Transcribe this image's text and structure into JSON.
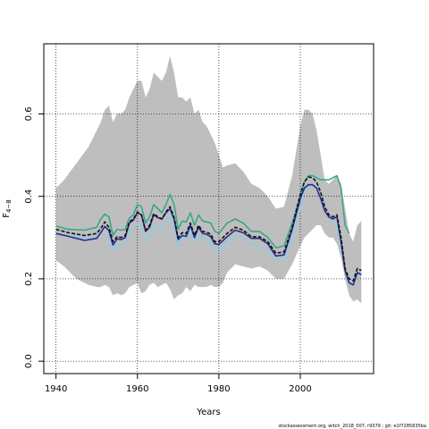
{
  "chart_data": {
    "type": "line",
    "xlabel": "Years",
    "ylabel": "F",
    "ylabel_sub": "4−8",
    "xlim": [
      1937,
      2018
    ],
    "ylim": [
      -0.03,
      0.77
    ],
    "x_ticks": [
      1940,
      1960,
      1980,
      2000
    ],
    "y_ticks": [
      0.0,
      0.2,
      0.4,
      0.6
    ],
    "x_tick_labels": [
      "1940",
      "1960",
      "1980",
      "2000"
    ],
    "y_tick_labels": [
      "0.0",
      "0.2",
      "0.4",
      "0.6"
    ],
    "grid": "dotted, at ticks",
    "footer": "stockassessment.org, witch_2018_007, r9379 ; git: e1f7285635ba",
    "band": {
      "color": "#bebebe",
      "x": [
        1940,
        1942,
        1945,
        1948,
        1950,
        1951,
        1952,
        1953,
        1954,
        1955,
        1956,
        1957,
        1958,
        1959,
        1960,
        1961,
        1962,
        1963,
        1964,
        1965,
        1966,
        1967,
        1968,
        1969,
        1970,
        1971,
        1972,
        1973,
        1974,
        1975,
        1976,
        1977,
        1978,
        1979,
        1980,
        1981,
        1982,
        1984,
        1986,
        1988,
        1990,
        1992,
        1994,
        1996,
        1998,
        2000,
        2001,
        2002,
        2003,
        2004,
        2005,
        2006,
        2007,
        2008,
        2009,
        2010,
        2011,
        2012,
        2013,
        2014,
        2015
      ],
      "upper": [
        0.42,
        0.44,
        0.48,
        0.52,
        0.56,
        0.58,
        0.61,
        0.62,
        0.58,
        0.6,
        0.6,
        0.61,
        0.64,
        0.66,
        0.68,
        0.68,
        0.64,
        0.66,
        0.7,
        0.69,
        0.68,
        0.7,
        0.74,
        0.7,
        0.64,
        0.64,
        0.63,
        0.64,
        0.6,
        0.61,
        0.58,
        0.57,
        0.55,
        0.53,
        0.5,
        0.47,
        0.475,
        0.48,
        0.46,
        0.43,
        0.42,
        0.4,
        0.37,
        0.375,
        0.45,
        0.57,
        0.61,
        0.61,
        0.6,
        0.56,
        0.5,
        0.44,
        0.43,
        0.44,
        0.45,
        0.43,
        0.37,
        0.31,
        0.29,
        0.33,
        0.34
      ],
      "lower": [
        0.245,
        0.23,
        0.2,
        0.185,
        0.18,
        0.18,
        0.185,
        0.18,
        0.16,
        0.165,
        0.16,
        0.165,
        0.18,
        0.185,
        0.19,
        0.165,
        0.17,
        0.185,
        0.19,
        0.18,
        0.185,
        0.19,
        0.175,
        0.15,
        0.16,
        0.165,
        0.18,
        0.17,
        0.185,
        0.18,
        0.18,
        0.18,
        0.185,
        0.18,
        0.18,
        0.19,
        0.215,
        0.235,
        0.23,
        0.225,
        0.23,
        0.22,
        0.2,
        0.2,
        0.235,
        0.28,
        0.3,
        0.31,
        0.32,
        0.33,
        0.33,
        0.31,
        0.3,
        0.3,
        0.285,
        0.25,
        0.2,
        0.16,
        0.145,
        0.15,
        0.14
      ]
    },
    "series": [
      {
        "color": "#3aa68c",
        "width": 1.6,
        "dash": "",
        "x": [
          1940,
          1943,
          1947,
          1950,
          1951,
          1952,
          1953,
          1954,
          1955,
          1956,
          1957,
          1958,
          1959,
          1960,
          1961,
          1962,
          1963,
          1964,
          1965,
          1966,
          1967,
          1968,
          1969,
          1970,
          1971,
          1972,
          1973,
          1974,
          1975,
          1976,
          1977,
          1978,
          1979,
          1980,
          1982,
          1984,
          1986,
          1988,
          1990,
          1992,
          1994,
          1996,
          1998,
          2000,
          2001,
          2002,
          2003,
          2004,
          2005,
          2006,
          2007,
          2008,
          2009,
          2010,
          2011,
          2012
        ],
        "values": [
          0.328,
          0.32,
          0.318,
          0.325,
          0.345,
          0.357,
          0.35,
          0.305,
          0.32,
          0.318,
          0.32,
          0.347,
          0.355,
          0.38,
          0.375,
          0.335,
          0.35,
          0.38,
          0.37,
          0.36,
          0.38,
          0.405,
          0.38,
          0.32,
          0.34,
          0.338,
          0.36,
          0.33,
          0.355,
          0.34,
          0.338,
          0.335,
          0.315,
          0.31,
          0.335,
          0.345,
          0.335,
          0.315,
          0.315,
          0.3,
          0.275,
          0.28,
          0.335,
          0.4,
          0.435,
          0.45,
          0.45,
          0.445,
          0.44,
          0.44,
          0.44,
          0.445,
          0.45,
          0.42,
          0.33,
          0.31
        ]
      },
      {
        "color": "#87ceeb",
        "width": 1.4,
        "dash": "",
        "x": [
          1940,
          1943,
          1947,
          1950,
          1951,
          1952,
          1953,
          1954,
          1955,
          1956,
          1957,
          1958,
          1959,
          1960,
          1961,
          1962,
          1963,
          1964,
          1965,
          1966,
          1967,
          1968,
          1969,
          1970,
          1971,
          1972,
          1973,
          1974,
          1975,
          1976,
          1977,
          1978,
          1979,
          1980,
          1982,
          1984,
          1986,
          1988,
          1990,
          1992,
          1994,
          1996,
          1998,
          2000,
          2001,
          2002,
          2003,
          2004,
          2005,
          2006,
          2007,
          2008,
          2009,
          2010,
          2011,
          2012,
          2013,
          2014,
          2015
        ],
        "values": [
          0.31,
          0.305,
          0.3,
          0.305,
          0.315,
          0.325,
          0.31,
          0.27,
          0.285,
          0.28,
          0.285,
          0.315,
          0.32,
          0.335,
          0.33,
          0.29,
          0.3,
          0.33,
          0.32,
          0.32,
          0.34,
          0.355,
          0.33,
          0.28,
          0.3,
          0.295,
          0.32,
          0.29,
          0.31,
          0.3,
          0.295,
          0.29,
          0.27,
          0.265,
          0.29,
          0.305,
          0.3,
          0.285,
          0.28,
          0.27,
          0.245,
          0.25,
          0.3,
          0.37,
          0.41,
          0.425,
          0.43,
          0.425,
          0.41,
          0.37,
          0.35,
          0.34,
          0.33,
          0.28,
          0.22,
          0.2,
          0.2,
          0.21,
          0.215
        ]
      },
      {
        "color": "#2a2a8a",
        "width": 1.6,
        "dash": "",
        "x": [
          1940,
          1943,
          1947,
          1950,
          1951,
          1952,
          1953,
          1954,
          1955,
          1956,
          1957,
          1958,
          1959,
          1960,
          1961,
          1962,
          1963,
          1964,
          1965,
          1966,
          1967,
          1968,
          1969,
          1970,
          1971,
          1972,
          1973,
          1974,
          1975,
          1976,
          1977,
          1978,
          1979,
          1980,
          1982,
          1984,
          1986,
          1988,
          1990,
          1992,
          1994,
          1996,
          1998,
          2000,
          2001,
          2002,
          2003,
          2004,
          2005,
          2006,
          2007,
          2008,
          2009,
          2010,
          2011,
          2012,
          2013,
          2014,
          2015
        ],
        "values": [
          0.31,
          0.303,
          0.293,
          0.298,
          0.312,
          0.327,
          0.317,
          0.282,
          0.297,
          0.295,
          0.3,
          0.335,
          0.342,
          0.36,
          0.355,
          0.315,
          0.325,
          0.355,
          0.348,
          0.345,
          0.36,
          0.37,
          0.345,
          0.295,
          0.305,
          0.303,
          0.33,
          0.3,
          0.325,
          0.31,
          0.308,
          0.302,
          0.285,
          0.283,
          0.302,
          0.318,
          0.312,
          0.298,
          0.298,
          0.285,
          0.255,
          0.258,
          0.32,
          0.395,
          0.42,
          0.428,
          0.428,
          0.42,
          0.395,
          0.365,
          0.35,
          0.345,
          0.35,
          0.29,
          0.22,
          0.19,
          0.185,
          0.215,
          0.21
        ]
      },
      {
        "color": "#111111",
        "width": 1.6,
        "dash": "4,2",
        "x": [
          1940,
          1943,
          1947,
          1950,
          1951,
          1952,
          1953,
          1954,
          1955,
          1956,
          1957,
          1958,
          1959,
          1960,
          1961,
          1962,
          1963,
          1964,
          1965,
          1966,
          1967,
          1968,
          1969,
          1970,
          1971,
          1972,
          1973,
          1974,
          1975,
          1976,
          1977,
          1978,
          1979,
          1980,
          1982,
          1984,
          1986,
          1988,
          1990,
          1992,
          1994,
          1996,
          1998,
          2000,
          2001,
          2002,
          2003,
          2004,
          2005,
          2006,
          2007,
          2008,
          2009,
          2010,
          2011,
          2012,
          2013,
          2014,
          2015
        ],
        "values": [
          0.32,
          0.312,
          0.305,
          0.31,
          0.322,
          0.338,
          0.325,
          0.29,
          0.302,
          0.3,
          0.305,
          0.338,
          0.345,
          0.362,
          0.355,
          0.318,
          0.33,
          0.358,
          0.35,
          0.345,
          0.362,
          0.375,
          0.348,
          0.3,
          0.312,
          0.31,
          0.335,
          0.305,
          0.33,
          0.315,
          0.313,
          0.308,
          0.29,
          0.29,
          0.31,
          0.325,
          0.318,
          0.302,
          0.302,
          0.29,
          0.262,
          0.265,
          0.325,
          0.405,
          0.435,
          0.447,
          0.445,
          0.435,
          0.41,
          0.375,
          0.355,
          0.35,
          0.355,
          0.3,
          0.225,
          0.2,
          0.195,
          0.225,
          0.22
        ]
      }
    ]
  }
}
